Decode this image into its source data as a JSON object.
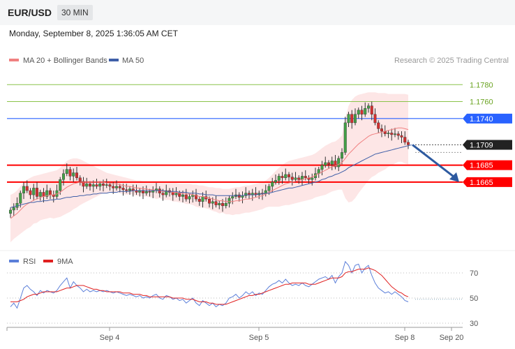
{
  "header": {
    "symbol": "EUR/USD",
    "timeframe": "30 MIN",
    "timestamp": "Monday, September 8, 2025 1:36:05 AM CET"
  },
  "colors": {
    "bull": "#43a047",
    "bear": "#d32f2f",
    "ma20": "#f08080",
    "ma50": "#3f5fa8",
    "band": "#fde2e2",
    "resistance_green": "#8bc34a",
    "resistance_blue": "#2962ff",
    "support_red": "#ff0000",
    "arrow": "#2d5aa0",
    "rsi": "#5b7fd9",
    "rsi_ma": "#e02020"
  },
  "chart_data": [
    {
      "type": "candlestick",
      "title": "",
      "legend": {
        "items": [
          "MA 20 + Bollinger Bands",
          "MA 50"
        ],
        "placement": "top-left"
      },
      "credit": "Research © 2025 Trading Central",
      "ylim": [
        1.1585,
        1.18
      ],
      "levels": [
        {
          "label": "1.1780",
          "value": 1.178,
          "style": "resistance",
          "color": "#8bc34a"
        },
        {
          "label": "1.1760",
          "value": 1.176,
          "style": "resistance",
          "color": "#8bc34a"
        },
        {
          "label": "1.1740",
          "value": 1.174,
          "style": "key-resistance",
          "color": "#2962ff"
        },
        {
          "label": "1.1709",
          "value": 1.1709,
          "style": "last-price",
          "color": "#222222"
        },
        {
          "label": "1.1685",
          "value": 1.1685,
          "style": "support",
          "color": "#ff0000"
        },
        {
          "label": "1.1665",
          "value": 1.1665,
          "style": "support",
          "color": "#ff0000"
        }
      ],
      "forecast_arrow": {
        "from": 1.1709,
        "to": 1.1665
      },
      "closes": [
        1.1632,
        1.1635,
        1.164,
        1.1652,
        1.166,
        1.1655,
        1.165,
        1.1658,
        1.1648,
        1.1653,
        1.1648,
        1.1655,
        1.165,
        1.1648,
        1.1655,
        1.1668,
        1.1675,
        1.168,
        1.1672,
        1.1676,
        1.167,
        1.1666,
        1.166,
        1.1663,
        1.166,
        1.1662,
        1.166,
        1.1663,
        1.1661,
        1.1662,
        1.166,
        1.1658,
        1.166,
        1.1658,
        1.1656,
        1.1655,
        1.1657,
        1.1655,
        1.1653,
        1.1655,
        1.1652,
        1.1654,
        1.1653,
        1.1655,
        1.1657,
        1.1652,
        1.165,
        1.1655,
        1.1653,
        1.165,
        1.1652,
        1.1648,
        1.165,
        1.1645,
        1.1648,
        1.165,
        1.1645,
        1.1642,
        1.1648,
        1.1645,
        1.164,
        1.1642,
        1.1638,
        1.164,
        1.1637,
        1.164,
        1.1646,
        1.1648,
        1.165,
        1.1647,
        1.1649,
        1.1652,
        1.165,
        1.1652,
        1.165,
        1.1652,
        1.1651,
        1.1655,
        1.166,
        1.1665,
        1.1667,
        1.1672,
        1.167,
        1.1674,
        1.1671,
        1.1668,
        1.167,
        1.1668,
        1.1672,
        1.167,
        1.1668,
        1.167,
        1.1675,
        1.168,
        1.1685,
        1.1688,
        1.1686,
        1.169,
        1.1683,
        1.1693,
        1.17,
        1.1735,
        1.1745,
        1.1735,
        1.1745,
        1.175,
        1.1745,
        1.1752,
        1.1755,
        1.1745,
        1.1735,
        1.1728,
        1.1725,
        1.1722,
        1.1723,
        1.1721,
        1.1722,
        1.172,
        1.1718,
        1.1712,
        1.1709
      ],
      "ma20": [
        1.1622,
        1.1625,
        1.1628,
        1.1632,
        1.1636,
        1.1639,
        1.1641,
        1.1644,
        1.1645,
        1.1647,
        1.1648,
        1.1649,
        1.165,
        1.165,
        1.1651,
        1.1653,
        1.1656,
        1.1659,
        1.1661,
        1.1663,
        1.1664,
        1.1665,
        1.1665,
        1.1665,
        1.1665,
        1.1665,
        1.1665,
        1.1665,
        1.1665,
        1.1664,
        1.1664,
        1.1663,
        1.1663,
        1.1662,
        1.1661,
        1.166,
        1.166,
        1.1659,
        1.1658,
        1.1658,
        1.1657,
        1.1657,
        1.1656,
        1.1656,
        1.1655,
        1.1655,
        1.1654,
        1.1654,
        1.1654,
        1.1653,
        1.1653,
        1.1652,
        1.1652,
        1.1651,
        1.1651,
        1.165,
        1.1649,
        1.1648,
        1.1648,
        1.1647,
        1.1646,
        1.1645,
        1.1644,
        1.1643,
        1.1643,
        1.1642,
        1.1642,
        1.1642,
        1.1643,
        1.1643,
        1.1644,
        1.1645,
        1.1645,
        1.1646,
        1.1647,
        1.1648,
        1.1649,
        1.1651,
        1.1653,
        1.1655,
        1.1657,
        1.1659,
        1.1661,
        1.1663,
        1.1664,
        1.1665,
        1.1666,
        1.1667,
        1.1668,
        1.1669,
        1.167,
        1.1671,
        1.1673,
        1.1675,
        1.1677,
        1.1679,
        1.1681,
        1.1683,
        1.1684,
        1.1686,
        1.1688,
        1.1693,
        1.1698,
        1.1702,
        1.1706,
        1.171,
        1.1713,
        1.1716,
        1.1719,
        1.1721,
        1.1722,
        1.1723,
        1.1724,
        1.1725,
        1.1726,
        1.1727,
        1.1728,
        1.1729,
        1.1729,
        1.1728,
        1.1727
      ],
      "bb_upper": [
        1.165,
        1.1652,
        1.1655,
        1.166,
        1.1665,
        1.1668,
        1.167,
        1.1672,
        1.1673,
        1.1674,
        1.1675,
        1.1676,
        1.1677,
        1.1678,
        1.1679,
        1.1682,
        1.1686,
        1.169,
        1.1692,
        1.1693,
        1.1693,
        1.1692,
        1.169,
        1.1688,
        1.1686,
        1.1684,
        1.1682,
        1.168,
        1.1678,
        1.1676,
        1.1675,
        1.1674,
        1.1673,
        1.1672,
        1.1671,
        1.167,
        1.1669,
        1.1668,
        1.1667,
        1.1667,
        1.1666,
        1.1666,
        1.1665,
        1.1665,
        1.1665,
        1.1664,
        1.1664,
        1.1664,
        1.1664,
        1.1664,
        1.1664,
        1.1663,
        1.1663,
        1.1663,
        1.1663,
        1.1662,
        1.1662,
        1.1661,
        1.1661,
        1.166,
        1.1659,
        1.1659,
        1.1658,
        1.1658,
        1.1657,
        1.1657,
        1.1657,
        1.1658,
        1.1659,
        1.1659,
        1.166,
        1.1661,
        1.1661,
        1.1662,
        1.1663,
        1.1664,
        1.1665,
        1.1667,
        1.167,
        1.1674,
        1.1678,
        1.1682,
        1.1685,
        1.1688,
        1.169,
        1.1691,
        1.1692,
        1.1693,
        1.1694,
        1.1695,
        1.1696,
        1.1697,
        1.1699,
        1.1702,
        1.1705,
        1.1708,
        1.171,
        1.1712,
        1.1713,
        1.1716,
        1.172,
        1.174,
        1.1755,
        1.1762,
        1.1766,
        1.1768,
        1.1769,
        1.177,
        1.1771,
        1.1771,
        1.1771,
        1.177,
        1.177,
        1.177,
        1.1769,
        1.1769,
        1.1769,
        1.1769,
        1.1769,
        1.1769,
        1.1768
      ],
      "bb_lower": [
        1.1594,
        1.1598,
        1.1601,
        1.1604,
        1.1607,
        1.161,
        1.1612,
        1.1616,
        1.1617,
        1.162,
        1.1621,
        1.1622,
        1.1623,
        1.1622,
        1.1623,
        1.1624,
        1.1626,
        1.1628,
        1.163,
        1.1633,
        1.1635,
        1.1638,
        1.164,
        1.1642,
        1.1644,
        1.1646,
        1.1648,
        1.165,
        1.1652,
        1.1652,
        1.1653,
        1.1652,
        1.1653,
        1.1652,
        1.1651,
        1.165,
        1.1651,
        1.165,
        1.1649,
        1.1649,
        1.1648,
        1.1648,
        1.1647,
        1.1647,
        1.1645,
        1.1646,
        1.1644,
        1.1644,
        1.1644,
        1.1642,
        1.1642,
        1.1641,
        1.1641,
        1.1639,
        1.1639,
        1.1638,
        1.1636,
        1.1635,
        1.1635,
        1.1634,
        1.1633,
        1.1631,
        1.163,
        1.1628,
        1.1629,
        1.1627,
        1.1627,
        1.1626,
        1.1627,
        1.1627,
        1.1628,
        1.1629,
        1.1629,
        1.163,
        1.1631,
        1.1632,
        1.1633,
        1.1635,
        1.1636,
        1.1636,
        1.1636,
        1.1636,
        1.1637,
        1.1638,
        1.1638,
        1.1639,
        1.164,
        1.1641,
        1.1642,
        1.1643,
        1.1644,
        1.1645,
        1.1647,
        1.1648,
        1.1649,
        1.165,
        1.1652,
        1.1654,
        1.1655,
        1.1656,
        1.1656,
        1.1646,
        1.1641,
        1.1642,
        1.1646,
        1.1652,
        1.1657,
        1.1662,
        1.1667,
        1.1671,
        1.1673,
        1.1676,
        1.1678,
        1.168,
        1.1683,
        1.1685,
        1.1687,
        1.1689,
        1.1689,
        1.1687,
        1.1686
      ],
      "ma50": [
        1.1635,
        1.1636,
        1.1637,
        1.1638,
        1.1639,
        1.164,
        1.1641,
        1.1641,
        1.1642,
        1.1642,
        1.1643,
        1.1643,
        1.1644,
        1.1644,
        1.1645,
        1.1645,
        1.1646,
        1.1647,
        1.1647,
        1.1648,
        1.1648,
        1.1649,
        1.1649,
        1.165,
        1.165,
        1.1651,
        1.1651,
        1.1652,
        1.1652,
        1.1652,
        1.1653,
        1.1653,
        1.1653,
        1.1654,
        1.1654,
        1.1654,
        1.1654,
        1.1655,
        1.1655,
        1.1655,
        1.1655,
        1.1655,
        1.1655,
        1.1655,
        1.1655,
        1.1655,
        1.1655,
        1.1654,
        1.1654,
        1.1654,
        1.1654,
        1.1653,
        1.1653,
        1.1653,
        1.1652,
        1.1652,
        1.1652,
        1.1651,
        1.1651,
        1.165,
        1.165,
        1.165,
        1.1649,
        1.1649,
        1.1649,
        1.1649,
        1.1649,
        1.1649,
        1.1649,
        1.1649,
        1.1649,
        1.165,
        1.165,
        1.165,
        1.165,
        1.1651,
        1.1651,
        1.1652,
        1.1652,
        1.1653,
        1.1654,
        1.1655,
        1.1656,
        1.1657,
        1.1658,
        1.1658,
        1.1659,
        1.166,
        1.1661,
        1.1662,
        1.1663,
        1.1664,
        1.1665,
        1.1666,
        1.1668,
        1.1669,
        1.1671,
        1.1672,
        1.1674,
        1.1675,
        1.1677,
        1.1679,
        1.1682,
        1.1684,
        1.1686,
        1.1688,
        1.169,
        1.1692,
        1.1694,
        1.1696,
        1.1698,
        1.1699,
        1.17,
        1.1701,
        1.1702,
        1.1703,
        1.1704,
        1.1705,
        1.1706,
        1.1707,
        1.1708,
        1.1709
      ]
    },
    {
      "type": "line",
      "title": "",
      "legend": {
        "items": [
          "RSI",
          "9MA"
        ],
        "placement": "top-left"
      },
      "ylim": [
        20,
        80
      ],
      "yticks": [
        70,
        50,
        30
      ],
      "x_ticks": [
        "Sep 4",
        "Sep 5",
        "Sep 8",
        "Sep 20"
      ],
      "series": [
        {
          "name": "RSI",
          "values": [
            43,
            46,
            42,
            50,
            58,
            60,
            57,
            55,
            52,
            56,
            54,
            56,
            55,
            54,
            56,
            60,
            63,
            66,
            58,
            63,
            60,
            58,
            55,
            57,
            55,
            56,
            55,
            56,
            55,
            56,
            55,
            54,
            55,
            54,
            53,
            52,
            53,
            52,
            51,
            52,
            50,
            51,
            50,
            52,
            53,
            50,
            49,
            52,
            51,
            49,
            50,
            48,
            49,
            46,
            48,
            50,
            46,
            44,
            48,
            46,
            44,
            46,
            43,
            45,
            44,
            46,
            50,
            51,
            53,
            50,
            52,
            55,
            53,
            55,
            52,
            54,
            53,
            56,
            59,
            61,
            62,
            64,
            62,
            65,
            62,
            60,
            61,
            60,
            62,
            60,
            59,
            61,
            63,
            65,
            66,
            67,
            65,
            68,
            62,
            67,
            70,
            79,
            76,
            70,
            76,
            77,
            70,
            74,
            76,
            68,
            62,
            58,
            56,
            54,
            55,
            53,
            55,
            53,
            51,
            48,
            47
          ]
        },
        {
          "name": "9MA",
          "values": [
            47,
            47,
            47,
            48,
            49,
            51,
            52,
            53,
            53,
            54,
            55,
            55,
            55,
            55,
            55,
            56,
            57,
            58,
            58,
            59,
            60,
            60,
            60,
            59,
            58,
            57,
            57,
            56,
            56,
            55,
            55,
            55,
            55,
            55,
            54,
            54,
            54,
            53,
            53,
            53,
            52,
            52,
            51,
            51,
            51,
            51,
            51,
            51,
            51,
            50,
            50,
            50,
            50,
            49,
            49,
            49,
            48,
            47,
            47,
            47,
            46,
            46,
            45,
            45,
            45,
            45,
            46,
            47,
            48,
            49,
            50,
            51,
            52,
            52,
            53,
            53,
            54,
            55,
            56,
            57,
            58,
            59,
            60,
            61,
            61,
            62,
            62,
            62,
            62,
            62,
            61,
            61,
            61,
            62,
            63,
            64,
            65,
            66,
            66,
            66,
            67,
            70,
            71,
            71,
            72,
            73,
            73,
            73,
            74,
            73,
            72,
            70,
            68,
            65,
            62,
            59,
            57,
            55,
            54,
            52,
            51
          ]
        }
      ]
    }
  ]
}
